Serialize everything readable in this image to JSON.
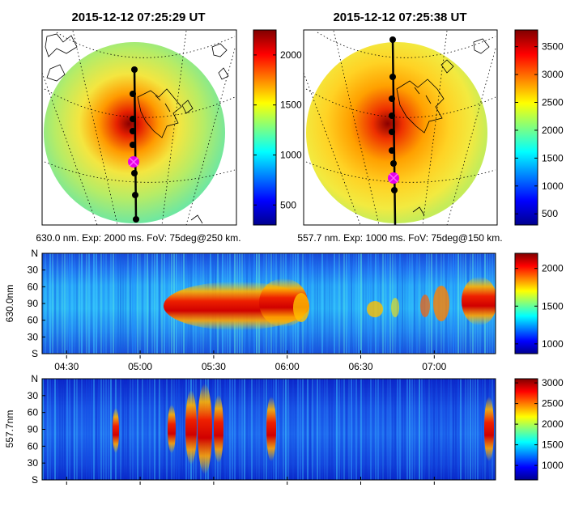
{
  "chart_data": [
    {
      "type": "heatmap",
      "panel": "all-sky image 630.0 nm",
      "title": "2015-12-12 07:25:29 UT",
      "caption": "630.0 nm. Exp: 2000 ms. FoV: 75deg@250 km.",
      "colorbar": {
        "min": 300,
        "max": 2250,
        "ticks": [
          500,
          1000,
          1500,
          2000
        ],
        "colormap": "jet"
      },
      "meridian_marker_count": 8
    },
    {
      "type": "heatmap",
      "panel": "all-sky image 557.7 nm",
      "title": "2015-12-12 07:25:38 UT",
      "caption": "557.7 nm. Exp: 1000 ms. FoV: 75deg@150 km.",
      "colorbar": {
        "min": 300,
        "max": 3800,
        "ticks": [
          500,
          1000,
          1500,
          2000,
          2500,
          3000,
          3500
        ],
        "colormap": "jet"
      },
      "meridian_marker_count": 8
    },
    {
      "type": "heatmap",
      "panel": "keogram 630.0 nm",
      "ylabel": "630.0nm",
      "yticks": [
        "N",
        "30",
        "60",
        "90",
        "60",
        "30",
        "S"
      ],
      "xticks": [
        "04:30",
        "05:00",
        "05:30",
        "06:00",
        "06:30",
        "07:00"
      ],
      "colorbar": {
        "min": 870,
        "max": 2200,
        "ticks": [
          1000,
          1500,
          2000
        ],
        "colormap": "jet"
      }
    },
    {
      "type": "heatmap",
      "panel": "keogram 557.7 nm",
      "ylabel": "557.7nm",
      "yticks": [
        "N",
        "30",
        "60",
        "90",
        "60",
        "30",
        "S"
      ],
      "xticks": [],
      "colorbar": {
        "min": 650,
        "max": 3100,
        "ticks": [
          1000,
          1500,
          2000,
          2500,
          3000
        ],
        "colormap": "jet"
      }
    }
  ]
}
